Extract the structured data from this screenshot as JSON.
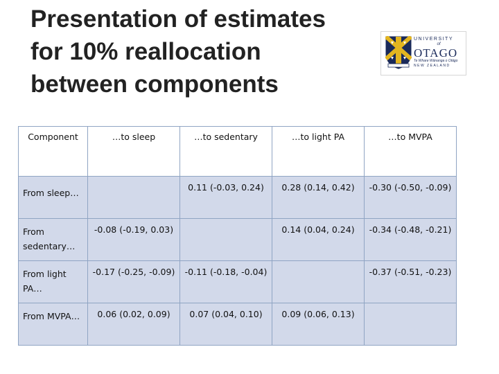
{
  "slide": {
    "title_lines": [
      "Presentation of estimates",
      "for 10% reallocation",
      "between components"
    ]
  },
  "logo": {
    "line1": "UNIVERSITY",
    "line2": "of",
    "line3": "OTAGO",
    "line4": "Te Whare Wānanga o Otāgo",
    "line5": "NEW ZEALAND"
  },
  "table": {
    "headers": [
      "Component",
      "…to sleep",
      "…to sedentary",
      "…to light PA",
      "…to MVPA"
    ],
    "rows": [
      {
        "label": "From sleep…",
        "cells": [
          "",
          "0.11 (-0.03, 0.24)",
          "0.28 (0.14, 0.42)",
          "-0.30 (-0.50, -0.09)"
        ]
      },
      {
        "label": "From sedentary…",
        "cells": [
          "-0.08 (-0.19, 0.03)",
          "",
          "0.14 (0.04, 0.24)",
          "-0.34 (-0.48, -0.21)"
        ]
      },
      {
        "label": "From light PA…",
        "cells": [
          "-0.17 (-0.25, -0.09)",
          "-0.11 (-0.18, -0.04)",
          "",
          "-0.37 (-0.51, -0.23)"
        ]
      },
      {
        "label": "From MVPA…",
        "cells": [
          "0.06 (0.02, 0.09)",
          "0.07 (0.04, 0.10)",
          "0.09 (0.06, 0.13)",
          ""
        ]
      }
    ]
  },
  "colors": {
    "cell_fill": "#d2d9ea",
    "border": "#8fa4c3",
    "logo_navy": "#1a2a5a",
    "logo_gold": "#e3b51f"
  }
}
